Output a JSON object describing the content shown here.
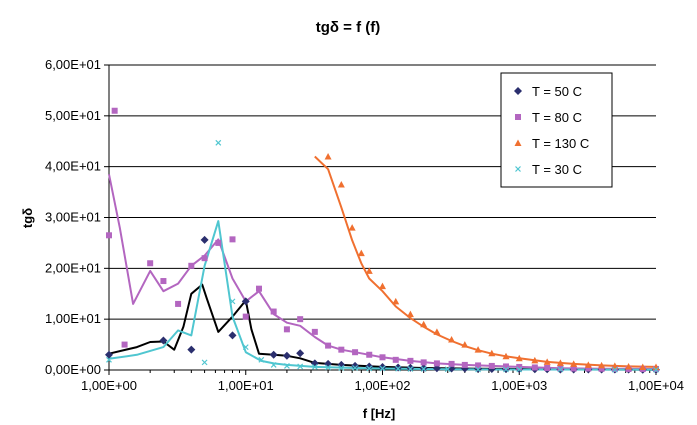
{
  "chart_data": {
    "type": "scatter",
    "title": "tgδ = f (f)",
    "xlabel": "f [Hz]",
    "ylabel": "tgδ",
    "xscale": "log",
    "xlim": [
      1,
      10000
    ],
    "ylim": [
      0,
      60
    ],
    "x_tick_values": [
      1,
      10,
      100,
      1000,
      10000
    ],
    "x_tick_labels": [
      "1,00E+00",
      "1,00E+01",
      "1,00E+02",
      "1,00E+03",
      "1,00E+04"
    ],
    "y_tick_values": [
      0,
      10,
      20,
      30,
      40,
      50,
      60
    ],
    "y_tick_labels": [
      "0,00E+00",
      "1,00E+01",
      "2,00E+01",
      "3,00E+01",
      "4,00E+01",
      "5,00E+01",
      "6,00E+01"
    ],
    "grid": "horizontal",
    "legend_position": "top-right",
    "series": [
      {
        "name": "T = 50 C",
        "color": "#2b2f6e",
        "marker": "diamond",
        "points": [
          [
            1.0,
            3.0
          ],
          [
            2.5,
            5.8
          ],
          [
            4.0,
            4.0
          ],
          [
            5.0,
            25.6
          ],
          [
            8.0,
            6.8
          ],
          [
            10.0,
            13.5
          ],
          [
            16.0,
            3.0
          ],
          [
            20.0,
            2.8
          ],
          [
            25.0,
            3.3
          ],
          [
            32.0,
            1.3
          ],
          [
            40.0,
            1.2
          ],
          [
            50.0,
            1.0
          ],
          [
            63.0,
            0.8
          ],
          [
            80.0,
            0.7
          ],
          [
            100.0,
            0.6
          ],
          [
            130.0,
            0.5
          ],
          [
            160.0,
            0.45
          ],
          [
            200.0,
            0.4
          ],
          [
            250.0,
            0.35
          ],
          [
            320.0,
            0.3
          ],
          [
            400.0,
            0.3
          ],
          [
            500.0,
            0.25
          ],
          [
            630.0,
            0.2
          ],
          [
            800.0,
            0.2
          ],
          [
            1000.0,
            0.2
          ],
          [
            1300.0,
            0.15
          ],
          [
            1600.0,
            0.15
          ],
          [
            2000.0,
            0.1
          ],
          [
            2500.0,
            0.1
          ],
          [
            3200.0,
            0.1
          ],
          [
            4000.0,
            0.1
          ],
          [
            5000.0,
            0.1
          ],
          [
            6300.0,
            0.1
          ],
          [
            8000.0,
            0.05
          ],
          [
            10000.0,
            0.05
          ]
        ]
      },
      {
        "name": "T = 80 C",
        "color": "#b366c0",
        "marker": "square",
        "points": [
          [
            1.0,
            26.5
          ],
          [
            1.1,
            51.0
          ],
          [
            1.3,
            5.0
          ],
          [
            2.0,
            21.0
          ],
          [
            2.5,
            17.5
          ],
          [
            3.2,
            13.0
          ],
          [
            4.0,
            20.5
          ],
          [
            5.0,
            22.0
          ],
          [
            6.3,
            25.0
          ],
          [
            8.0,
            25.7
          ],
          [
            10.0,
            10.5
          ],
          [
            12.5,
            16.0
          ],
          [
            16.0,
            11.5
          ],
          [
            20.0,
            8.0
          ],
          [
            25.0,
            10.0
          ],
          [
            32.0,
            7.5
          ],
          [
            40.0,
            4.8
          ],
          [
            50.0,
            4.0
          ],
          [
            63.0,
            3.5
          ],
          [
            80.0,
            3.0
          ],
          [
            100.0,
            2.5
          ],
          [
            125.0,
            2.0
          ],
          [
            160.0,
            1.8
          ],
          [
            200.0,
            1.5
          ],
          [
            250.0,
            1.3
          ],
          [
            320.0,
            1.2
          ],
          [
            400.0,
            1.0
          ],
          [
            500.0,
            0.9
          ],
          [
            630.0,
            0.8
          ],
          [
            800.0,
            0.7
          ],
          [
            1000.0,
            0.6
          ],
          [
            1300.0,
            0.5
          ],
          [
            1600.0,
            0.4
          ],
          [
            2000.0,
            0.35
          ],
          [
            2500.0,
            0.3
          ],
          [
            3200.0,
            0.3
          ],
          [
            4000.0,
            0.25
          ],
          [
            5000.0,
            0.2
          ],
          [
            6300.0,
            0.2
          ],
          [
            8000.0,
            0.2
          ],
          [
            10000.0,
            0.2
          ]
        ]
      },
      {
        "name": "T = 130 C",
        "color": "#f07030",
        "marker": "triangle",
        "points": [
          [
            40.0,
            42.0
          ],
          [
            50.0,
            36.5
          ],
          [
            60.0,
            28.0
          ],
          [
            70.0,
            23.0
          ],
          [
            80.0,
            19.5
          ],
          [
            100.0,
            16.5
          ],
          [
            125.0,
            13.5
          ],
          [
            160.0,
            11.0
          ],
          [
            200.0,
            9.0
          ],
          [
            250.0,
            7.5
          ],
          [
            320.0,
            6.0
          ],
          [
            400.0,
            5.0
          ],
          [
            500.0,
            4.0
          ],
          [
            630.0,
            3.3
          ],
          [
            800.0,
            2.7
          ],
          [
            1000.0,
            2.3
          ],
          [
            1300.0,
            1.9
          ],
          [
            1600.0,
            1.6
          ],
          [
            2000.0,
            1.4
          ],
          [
            2500.0,
            1.2
          ],
          [
            3200.0,
            1.0
          ],
          [
            4000.0,
            0.9
          ],
          [
            5000.0,
            0.8
          ],
          [
            6300.0,
            0.7
          ],
          [
            8000.0,
            0.6
          ],
          [
            10000.0,
            0.6
          ]
        ]
      },
      {
        "name": "T = 30 C",
        "color": "#4fc6d0",
        "marker": "x",
        "points": [
          [
            1.0,
            2.0
          ],
          [
            5.0,
            1.5
          ],
          [
            6.3,
            44.7
          ],
          [
            8.0,
            13.5
          ],
          [
            10.0,
            4.5
          ],
          [
            13.0,
            2.0
          ],
          [
            16.0,
            1.0
          ],
          [
            20.0,
            0.8
          ],
          [
            25.0,
            0.7
          ],
          [
            32.0,
            0.6
          ],
          [
            40.0,
            0.5
          ],
          [
            50.0,
            0.4
          ],
          [
            63.0,
            0.4
          ],
          [
            80.0,
            0.3
          ],
          [
            100.0,
            0.3
          ],
          [
            130.0,
            0.25
          ],
          [
            160.0,
            0.2
          ],
          [
            200.0,
            0.2
          ],
          [
            300.0,
            0.15
          ],
          [
            500.0,
            0.1
          ],
          [
            800.0,
            0.1
          ],
          [
            1000.0,
            0.1
          ],
          [
            2000.0,
            0.1
          ],
          [
            5000.0,
            0.05
          ],
          [
            10000.0,
            0.05
          ]
        ]
      }
    ],
    "trend_lines": [
      {
        "series": "T = 50 C",
        "color": "#000000",
        "points": [
          [
            1.0,
            3.2
          ],
          [
            1.6,
            4.5
          ],
          [
            2.0,
            5.5
          ],
          [
            2.5,
            5.6
          ],
          [
            3.0,
            4.0
          ],
          [
            3.5,
            8.5
          ],
          [
            4.0,
            15.0
          ],
          [
            4.8,
            16.8
          ],
          [
            5.2,
            14.0
          ],
          [
            6.3,
            7.5
          ],
          [
            8.0,
            10.5
          ],
          [
            10.0,
            13.7
          ],
          [
            11.0,
            8.0
          ],
          [
            12.5,
            3.2
          ],
          [
            16.0,
            3.0
          ],
          [
            20.0,
            2.8
          ],
          [
            25.0,
            2.3
          ],
          [
            32.0,
            1.4
          ],
          [
            50.0,
            1.0
          ],
          [
            100.0,
            0.6
          ],
          [
            200.0,
            0.4
          ],
          [
            500.0,
            0.25
          ],
          [
            1000.0,
            0.2
          ],
          [
            3000.0,
            0.1
          ],
          [
            10000.0,
            0.05
          ]
        ]
      },
      {
        "series": "T = 80 C",
        "color": "#b366c0",
        "points": [
          [
            1.0,
            38.5
          ],
          [
            1.2,
            28.0
          ],
          [
            1.5,
            13.0
          ],
          [
            2.0,
            19.5
          ],
          [
            2.5,
            15.5
          ],
          [
            3.2,
            17.0
          ],
          [
            4.0,
            20.5
          ],
          [
            5.0,
            22.5
          ],
          [
            6.3,
            25.7
          ],
          [
            8.0,
            18.0
          ],
          [
            10.0,
            13.5
          ],
          [
            12.5,
            15.5
          ],
          [
            16.0,
            11.0
          ],
          [
            20.0,
            9.3
          ],
          [
            25.0,
            8.7
          ],
          [
            32.0,
            6.5
          ],
          [
            40.0,
            4.8
          ],
          [
            50.0,
            4.0
          ],
          [
            63.0,
            3.5
          ],
          [
            80.0,
            3.0
          ],
          [
            100.0,
            2.5
          ],
          [
            160.0,
            1.8
          ],
          [
            250.0,
            1.3
          ],
          [
            400.0,
            1.0
          ],
          [
            630.0,
            0.8
          ],
          [
            1000.0,
            0.6
          ],
          [
            2000.0,
            0.35
          ],
          [
            4000.0,
            0.25
          ],
          [
            10000.0,
            0.2
          ]
        ]
      },
      {
        "series": "T = 130 C",
        "color": "#f07030",
        "points": [
          [
            32.0,
            42.0
          ],
          [
            40.0,
            39.5
          ],
          [
            50.0,
            32.0
          ],
          [
            60.0,
            25.5
          ],
          [
            70.0,
            21.0
          ],
          [
            80.0,
            18.0
          ],
          [
            100.0,
            15.5
          ],
          [
            125.0,
            12.5
          ],
          [
            160.0,
            10.2
          ],
          [
            200.0,
            8.5
          ],
          [
            250.0,
            7.0
          ],
          [
            320.0,
            5.7
          ],
          [
            400.0,
            4.7
          ],
          [
            500.0,
            3.9
          ],
          [
            630.0,
            3.2
          ],
          [
            800.0,
            2.7
          ],
          [
            1000.0,
            2.3
          ],
          [
            1600.0,
            1.6
          ],
          [
            2500.0,
            1.2
          ],
          [
            4000.0,
            0.9
          ],
          [
            6300.0,
            0.7
          ],
          [
            10000.0,
            0.6
          ]
        ]
      },
      {
        "series": "T = 30 C",
        "color": "#4fc6d0",
        "points": [
          [
            1.0,
            2.2
          ],
          [
            1.6,
            3.0
          ],
          [
            2.5,
            4.5
          ],
          [
            3.2,
            7.8
          ],
          [
            4.0,
            6.8
          ],
          [
            5.0,
            20.5
          ],
          [
            6.3,
            29.3
          ],
          [
            8.0,
            10.5
          ],
          [
            10.0,
            3.5
          ],
          [
            13.0,
            1.8
          ],
          [
            16.0,
            1.3
          ],
          [
            20.0,
            1.0
          ],
          [
            32.0,
            0.6
          ],
          [
            63.0,
            0.4
          ],
          [
            100.0,
            0.3
          ],
          [
            300.0,
            0.15
          ],
          [
            1000.0,
            0.1
          ],
          [
            10000.0,
            0.05
          ]
        ]
      }
    ]
  }
}
